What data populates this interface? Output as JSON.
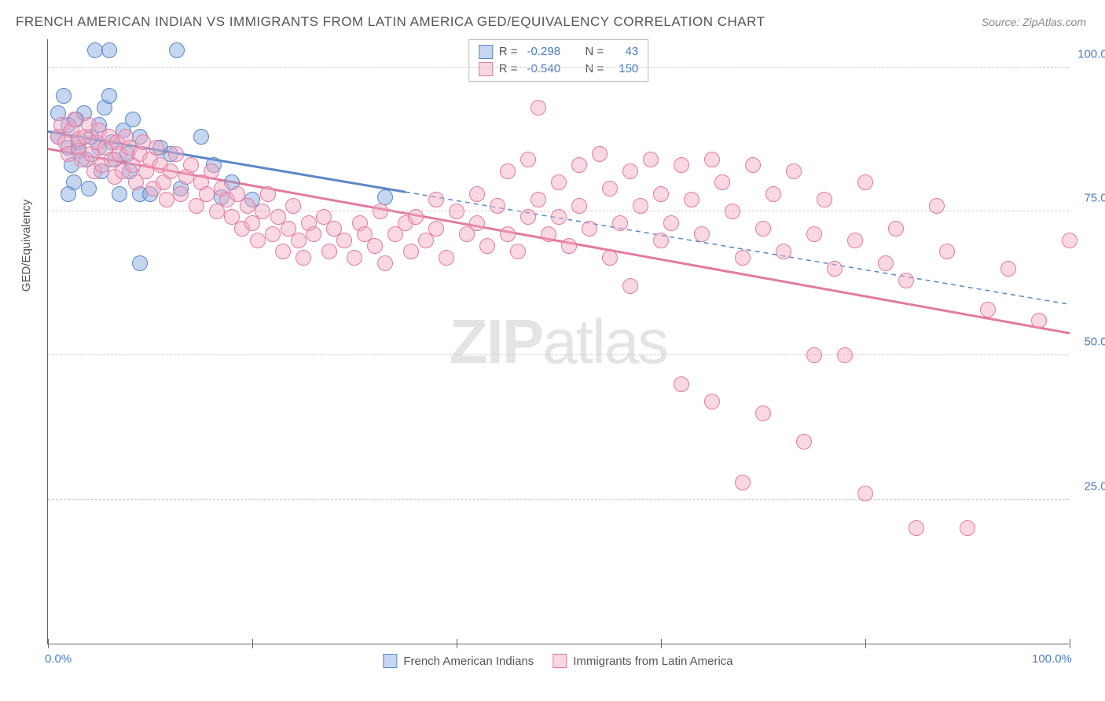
{
  "title": "FRENCH AMERICAN INDIAN VS IMMIGRANTS FROM LATIN AMERICA GED/EQUIVALENCY CORRELATION CHART",
  "source": "Source: ZipAtlas.com",
  "ylabel": "GED/Equivalency",
  "watermark_a": "ZIP",
  "watermark_b": "atlas",
  "chart": {
    "type": "scatter",
    "xlim": [
      0,
      100
    ],
    "ylim": [
      0,
      105
    ],
    "xticks": [
      0,
      20,
      40,
      60,
      80,
      100
    ],
    "yticks": [
      25,
      50,
      75,
      100
    ],
    "ytick_labels": [
      "25.0%",
      "50.0%",
      "75.0%",
      "100.0%"
    ],
    "xtick_labels_shown": {
      "0": "0.0%",
      "100": "100.0%"
    },
    "grid_color": "#cccccc",
    "axis_color": "#666666",
    "tick_label_color": "#4a7bc4",
    "background": "#ffffff",
    "marker_radius": 10,
    "marker_border_width": 1.5,
    "series": [
      {
        "name": "French American Indians",
        "fill": "rgba(124,163,221,0.45)",
        "stroke": "#5b87c7",
        "R": "-0.298",
        "N": "43",
        "trend": {
          "x1": 0,
          "y1": 89,
          "x2": 100,
          "y2": 59,
          "solid_until_x": 35
        },
        "points": [
          [
            1,
            88
          ],
          [
            1,
            92
          ],
          [
            1.5,
            95
          ],
          [
            2,
            86
          ],
          [
            2,
            90
          ],
          [
            2.3,
            83
          ],
          [
            2.5,
            80
          ],
          [
            2.8,
            91
          ],
          [
            3,
            87
          ],
          [
            3,
            85.5
          ],
          [
            3.5,
            92
          ],
          [
            3.8,
            84
          ],
          [
            4,
            79
          ],
          [
            4.2,
            88
          ],
          [
            4.6,
            103
          ],
          [
            5,
            90
          ],
          [
            5,
            86
          ],
          [
            5.2,
            82
          ],
          [
            5.5,
            93
          ],
          [
            6,
            103
          ],
          [
            6,
            95
          ],
          [
            6.2,
            87
          ],
          [
            6.5,
            84
          ],
          [
            7,
            78
          ],
          [
            7.4,
            89
          ],
          [
            7.8,
            85
          ],
          [
            8,
            82
          ],
          [
            8.3,
            91
          ],
          [
            9,
            78
          ],
          [
            9,
            88
          ],
          [
            9,
            66
          ],
          [
            2,
            78
          ],
          [
            10,
            78
          ],
          [
            11,
            86
          ],
          [
            12,
            85
          ],
          [
            12.6,
            103
          ],
          [
            13,
            79
          ],
          [
            15,
            88
          ],
          [
            16.2,
            83
          ],
          [
            17,
            77.5
          ],
          [
            18,
            80
          ],
          [
            20,
            77
          ],
          [
            33,
            77.5
          ]
        ]
      },
      {
        "name": "Immigrants from Latin America",
        "fill": "rgba(244,168,192,0.45)",
        "stroke": "#e37aa0",
        "R": "-0.540",
        "N": "150",
        "trend": {
          "x1": 0,
          "y1": 86,
          "x2": 100,
          "y2": 54,
          "solid_until_x": 100
        },
        "points": [
          [
            1,
            88
          ],
          [
            1.3,
            90
          ],
          [
            1.7,
            87
          ],
          [
            2,
            85
          ],
          [
            2.3,
            89
          ],
          [
            2.6,
            91
          ],
          [
            3,
            86
          ],
          [
            3,
            87.5
          ],
          [
            3.3,
            84
          ],
          [
            3.6,
            88
          ],
          [
            4,
            90
          ],
          [
            4.2,
            85
          ],
          [
            4.5,
            82
          ],
          [
            4.8,
            87
          ],
          [
            5,
            89
          ],
          [
            5.3,
            83
          ],
          [
            5.6,
            86
          ],
          [
            6,
            88
          ],
          [
            6.2,
            84
          ],
          [
            6.5,
            81
          ],
          [
            6.8,
            87
          ],
          [
            7,
            85
          ],
          [
            7.3,
            82
          ],
          [
            7.6,
            88
          ],
          [
            8,
            86
          ],
          [
            8.3,
            83
          ],
          [
            8.6,
            80
          ],
          [
            9,
            85
          ],
          [
            9.3,
            87
          ],
          [
            9.6,
            82
          ],
          [
            10,
            84
          ],
          [
            10.3,
            79
          ],
          [
            10.6,
            86
          ],
          [
            11,
            83
          ],
          [
            11.3,
            80
          ],
          [
            11.6,
            77
          ],
          [
            12,
            82
          ],
          [
            12.5,
            85
          ],
          [
            13,
            78
          ],
          [
            13.5,
            81
          ],
          [
            14,
            83
          ],
          [
            14.5,
            76
          ],
          [
            15,
            80
          ],
          [
            15.5,
            78
          ],
          [
            16,
            82
          ],
          [
            16.5,
            75
          ],
          [
            17,
            79
          ],
          [
            17.5,
            77
          ],
          [
            18,
            74
          ],
          [
            18.5,
            78
          ],
          [
            19,
            72
          ],
          [
            19.5,
            76
          ],
          [
            20,
            73
          ],
          [
            20.5,
            70
          ],
          [
            21,
            75
          ],
          [
            21.5,
            78
          ],
          [
            22,
            71
          ],
          [
            22.5,
            74
          ],
          [
            23,
            68
          ],
          [
            23.5,
            72
          ],
          [
            24,
            76
          ],
          [
            24.5,
            70
          ],
          [
            25,
            67
          ],
          [
            25.5,
            73
          ],
          [
            26,
            71
          ],
          [
            27,
            74
          ],
          [
            27.5,
            68
          ],
          [
            28,
            72
          ],
          [
            29,
            70
          ],
          [
            30,
            67
          ],
          [
            30.5,
            73
          ],
          [
            31,
            71
          ],
          [
            32,
            69
          ],
          [
            32.5,
            75
          ],
          [
            33,
            66
          ],
          [
            34,
            71
          ],
          [
            35,
            73
          ],
          [
            35.5,
            68
          ],
          [
            36,
            74
          ],
          [
            37,
            70
          ],
          [
            38,
            77
          ],
          [
            38,
            72
          ],
          [
            39,
            67
          ],
          [
            40,
            75
          ],
          [
            41,
            71
          ],
          [
            42,
            78
          ],
          [
            42,
            73
          ],
          [
            43,
            69
          ],
          [
            44,
            76
          ],
          [
            45,
            82
          ],
          [
            45,
            71
          ],
          [
            46,
            68
          ],
          [
            47,
            84
          ],
          [
            47,
            74
          ],
          [
            48,
            93
          ],
          [
            48,
            77
          ],
          [
            49,
            71
          ],
          [
            50,
            80
          ],
          [
            50,
            74
          ],
          [
            51,
            69
          ],
          [
            52,
            83
          ],
          [
            52,
            76
          ],
          [
            53,
            72
          ],
          [
            54,
            85
          ],
          [
            55,
            79
          ],
          [
            55,
            67
          ],
          [
            56,
            73
          ],
          [
            57,
            82
          ],
          [
            57,
            62
          ],
          [
            58,
            76
          ],
          [
            59,
            84
          ],
          [
            60,
            70
          ],
          [
            60,
            78
          ],
          [
            61,
            73
          ],
          [
            62,
            83
          ],
          [
            62,
            45
          ],
          [
            63,
            77
          ],
          [
            64,
            71
          ],
          [
            65,
            84
          ],
          [
            65,
            42
          ],
          [
            66,
            80
          ],
          [
            67,
            75
          ],
          [
            68,
            67
          ],
          [
            68,
            28
          ],
          [
            69,
            83
          ],
          [
            70,
            72
          ],
          [
            70,
            40
          ],
          [
            71,
            78
          ],
          [
            72,
            68
          ],
          [
            73,
            82
          ],
          [
            74,
            35
          ],
          [
            75,
            50
          ],
          [
            75,
            71
          ],
          [
            76,
            77
          ],
          [
            77,
            65
          ],
          [
            78,
            50
          ],
          [
            79,
            70
          ],
          [
            80,
            80
          ],
          [
            80,
            26
          ],
          [
            82,
            66
          ],
          [
            83,
            72
          ],
          [
            84,
            63
          ],
          [
            85,
            20
          ],
          [
            87,
            76
          ],
          [
            88,
            68
          ],
          [
            90,
            20
          ],
          [
            92,
            58
          ],
          [
            94,
            65
          ],
          [
            97,
            56
          ],
          [
            100,
            70
          ]
        ]
      }
    ]
  },
  "legend_bottom": [
    {
      "swatch_fill": "rgba(124,163,221,0.45)",
      "swatch_stroke": "#5b87c7",
      "label": "French American Indians"
    },
    {
      "swatch_fill": "rgba(244,168,192,0.45)",
      "swatch_stroke": "#e37aa0",
      "label": "Immigrants from Latin America"
    }
  ]
}
